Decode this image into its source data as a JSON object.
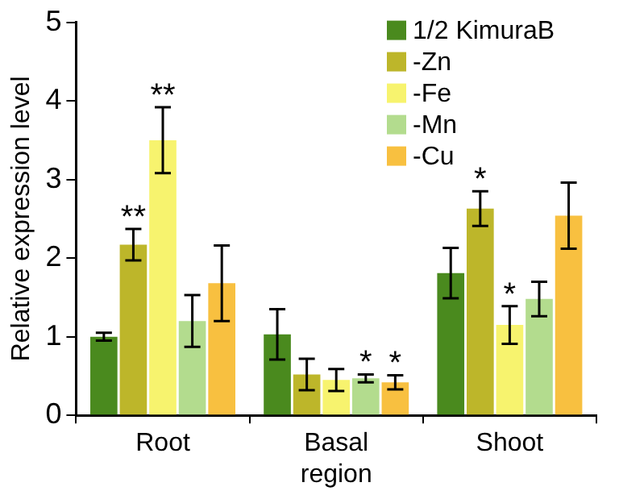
{
  "chart_data": {
    "type": "bar",
    "ylabel": "Relative expression level",
    "categories": [
      "Root",
      "Basal region",
      "Shoot"
    ],
    "series": [
      {
        "name": "1/2 KimuraB",
        "color": "#4a8a1e",
        "values": [
          1.0,
          1.03,
          1.81
        ],
        "errors": [
          0.05,
          0.32,
          0.32
        ]
      },
      {
        "name": "-Zn",
        "color": "#bdb62a",
        "values": [
          2.17,
          0.52,
          2.63
        ],
        "errors": [
          0.2,
          0.2,
          0.22
        ],
        "value_labels": [
          "**",
          null,
          "*"
        ]
      },
      {
        "name": "-Fe",
        "color": "#f7f36e",
        "values": [
          3.5,
          0.45,
          1.15
        ],
        "errors": [
          0.42,
          0.14,
          0.24
        ],
        "value_labels": [
          "**",
          null,
          "*"
        ]
      },
      {
        "name": "-Mn",
        "color": "#b3dc8e",
        "values": [
          1.2,
          0.47,
          1.48
        ],
        "errors": [
          0.33,
          0.05,
          0.22
        ],
        "value_labels": [
          null,
          "*",
          null
        ]
      },
      {
        "name": "-Cu",
        "color": "#f8c040",
        "values": [
          1.68,
          0.42,
          2.54
        ],
        "errors": [
          0.48,
          0.09,
          0.42
        ],
        "value_labels": [
          null,
          "*",
          null
        ]
      }
    ],
    "ylim": [
      0,
      5
    ],
    "yticks": [
      0,
      1,
      2,
      3,
      4,
      5
    ],
    "grid": false,
    "legend": "top right"
  }
}
